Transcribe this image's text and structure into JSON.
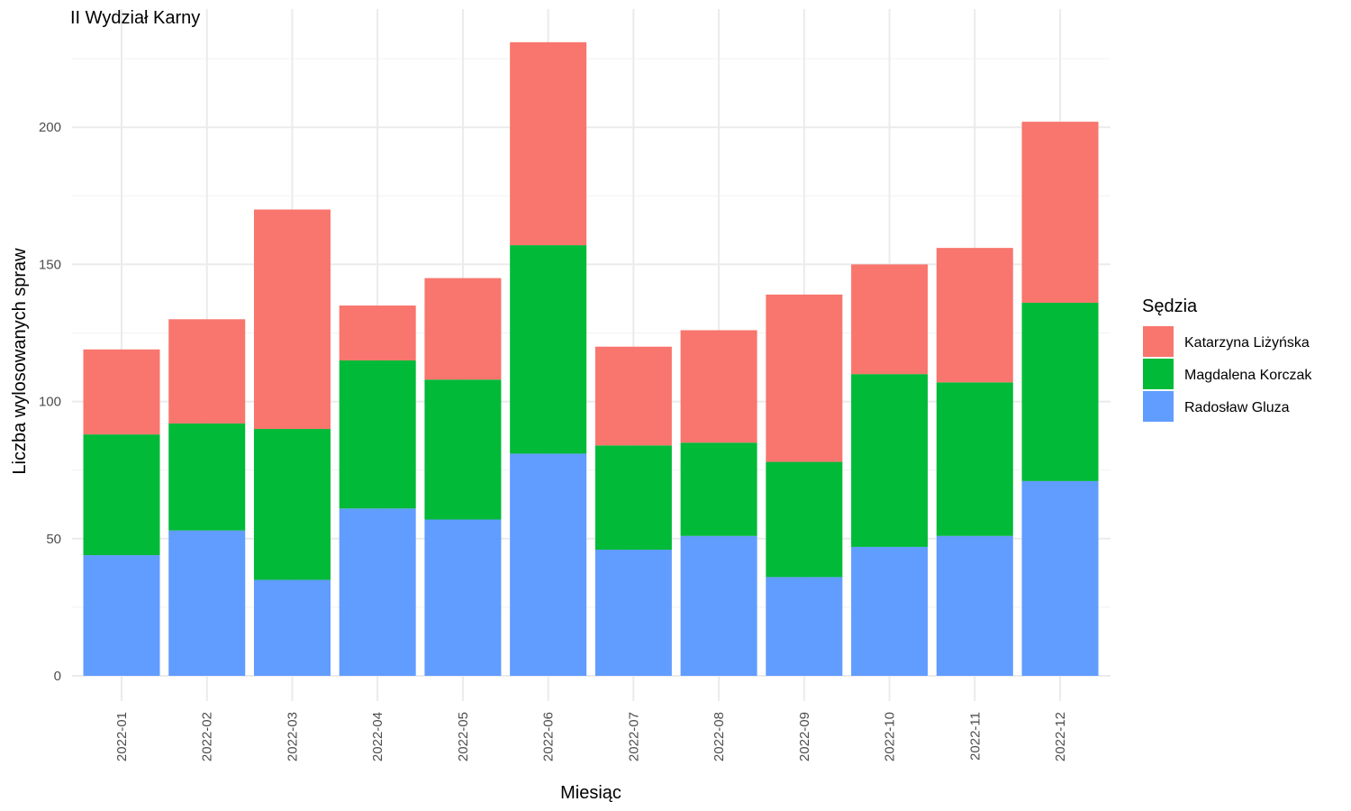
{
  "chart_data": {
    "type": "bar",
    "stacked": true,
    "title": "II Wydział Karny",
    "xlabel": "Miesiąc",
    "ylabel": "Liczba wylosowanych spraw",
    "ylim": [
      0,
      236
    ],
    "yticks": [
      0,
      50,
      100,
      150,
      200
    ],
    "grid": true,
    "legend": {
      "title": "Sędzia",
      "position": "right"
    },
    "categories": [
      "2022-01",
      "2022-02",
      "2022-03",
      "2022-04",
      "2022-05",
      "2022-06",
      "2022-07",
      "2022-08",
      "2022-09",
      "2022-10",
      "2022-11",
      "2022-12"
    ],
    "series": [
      {
        "name": "Radosław Gluza",
        "color": "#619CFF",
        "values": [
          44,
          53,
          35,
          61,
          57,
          81,
          46,
          51,
          36,
          47,
          51,
          71
        ]
      },
      {
        "name": "Magdalena Korczak",
        "color": "#00BA38",
        "values": [
          44,
          39,
          55,
          54,
          51,
          76,
          38,
          34,
          42,
          63,
          56,
          65
        ]
      },
      {
        "name": "Katarzyna Liżyńska",
        "color": "#F8766D",
        "values": [
          31,
          38,
          80,
          20,
          37,
          74,
          36,
          41,
          61,
          40,
          49,
          66
        ]
      }
    ],
    "legend_order": [
      "Katarzyna Liżyńska",
      "Magdalena Korczak",
      "Radosław Gluza"
    ]
  }
}
